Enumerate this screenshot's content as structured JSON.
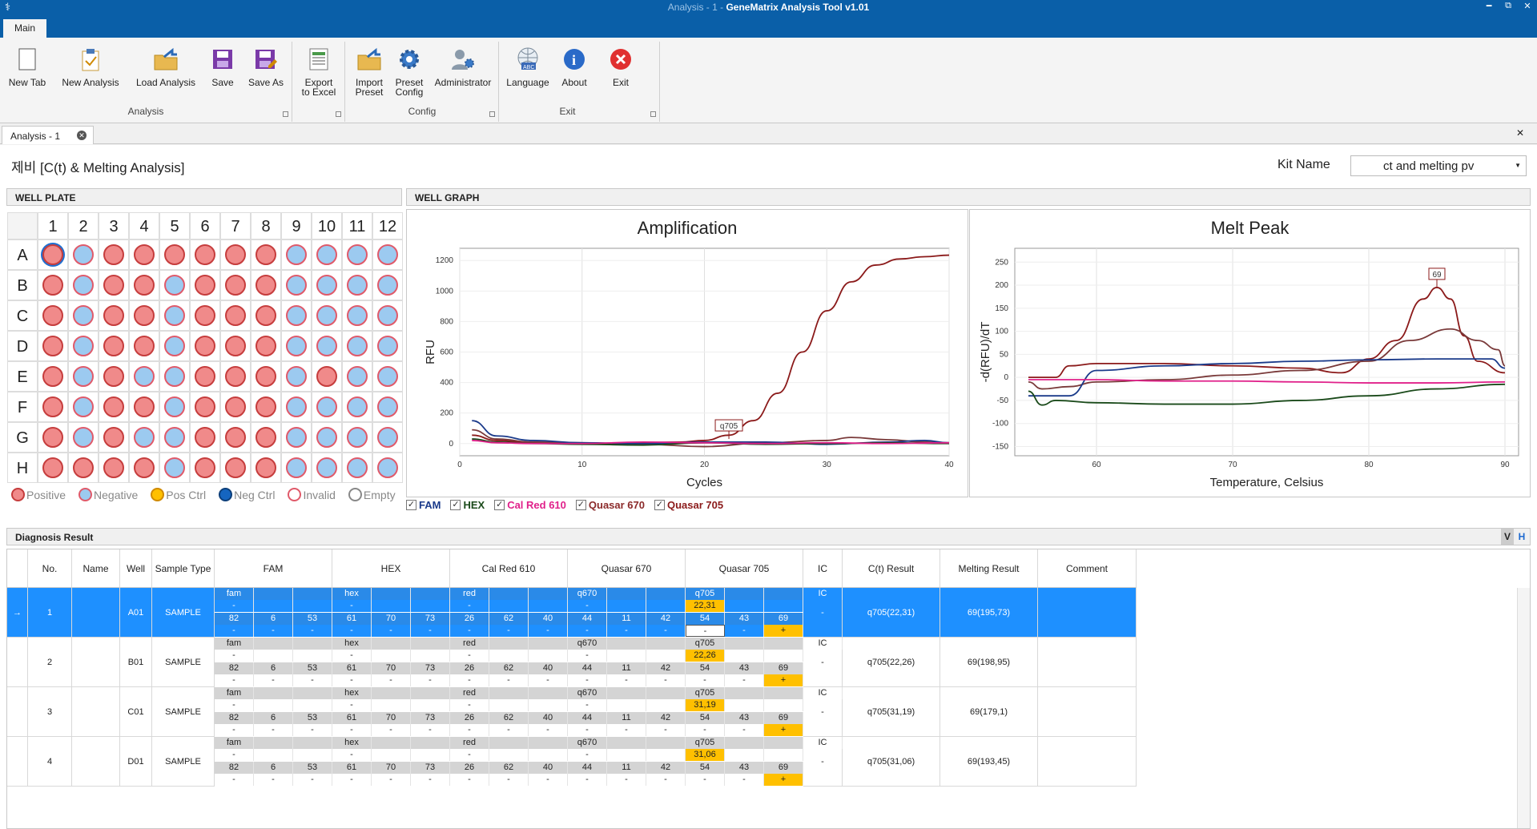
{
  "window": {
    "title_prefix": "Analysis - 1 - ",
    "title": "GeneMatrix Analysis Tool v1.01",
    "min": "━",
    "restore": "⧉",
    "close": "✕"
  },
  "ribbon": {
    "tab": "Main",
    "groups": [
      {
        "label": "Analysis"
      },
      {
        "label": "Config"
      },
      {
        "label": "Exit"
      }
    ],
    "buttons": {
      "new_tab": "New Tab",
      "new_analysis": "New Analysis",
      "load_analysis": "Load Analysis",
      "save": "Save",
      "save_as": "Save As",
      "export1": "Export",
      "export2": "to Excel",
      "import1": "Import",
      "import2": "Preset",
      "preset1": "Preset",
      "preset2": "Config",
      "admin": "Administrator",
      "language": "Language",
      "about": "About",
      "exit": "Exit"
    }
  },
  "doc_tab": {
    "label": "Analysis - 1",
    "close": "✕"
  },
  "close_all": "✕",
  "heading": "제비 [C(t) & Melting Analysis]",
  "kit": {
    "label": "Kit Name",
    "value": "ct and melting pv"
  },
  "well_plate": {
    "header": "WELL PLATE",
    "cols": [
      "1",
      "2",
      "3",
      "4",
      "5",
      "6",
      "7",
      "8",
      "9",
      "10",
      "11",
      "12"
    ],
    "rows": [
      "A",
      "B",
      "C",
      "D",
      "E",
      "F",
      "G",
      "H"
    ],
    "layout": [
      "PNPPPPPPNNNN",
      "PNPPNPPPNNNN",
      "PNPPNPPPNNNN",
      "PNPPNPPPNNNN",
      "PNPNNPPPNPNN",
      "PNPPNPPPNNNN",
      "PNPNNPPPNNNN",
      "PPPPNPPPNNNN"
    ],
    "legend": [
      {
        "label": "Positive",
        "fill": "#f08a8a",
        "stroke": "#c63d3d"
      },
      {
        "label": "Negative",
        "fill": "#9ccaf0",
        "stroke": "#e05a6a"
      },
      {
        "label": "Pos Ctrl",
        "fill": "#ffc000",
        "stroke": "#d08a00"
      },
      {
        "label": "Neg Ctrl",
        "fill": "#1565c0",
        "stroke": "#0d3f7a"
      },
      {
        "label": "Invalid",
        "fill": "#ffffff",
        "stroke": "#e05a6a"
      },
      {
        "label": "Empty",
        "fill": "#ffffff",
        "stroke": "#888888"
      }
    ]
  },
  "well_graph": {
    "header": "WELL GRAPH"
  },
  "chart_data": [
    {
      "type": "line",
      "title": "Amplification",
      "xlabel": "Cycles",
      "ylabel": "RFU",
      "xlim": [
        0,
        40
      ],
      "ylim": [
        -80,
        1280
      ],
      "xticks": [
        0,
        10,
        20,
        30,
        40
      ],
      "yticks": [
        0,
        200,
        400,
        600,
        800,
        1000,
        1200
      ],
      "annotation": {
        "label": "q705",
        "x": 22,
        "y": 30
      },
      "series": [
        {
          "name": "Quasar 705",
          "color": "#8b1a1a",
          "x": [
            1,
            3,
            6,
            10,
            15,
            18,
            20,
            22,
            24,
            26,
            28,
            30,
            32,
            34,
            36,
            38,
            40
          ],
          "y": [
            55,
            20,
            5,
            0,
            5,
            10,
            20,
            55,
            150,
            330,
            600,
            870,
            1060,
            1170,
            1210,
            1225,
            1235
          ]
        },
        {
          "name": "Quasar 670",
          "color": "#7a3a3a",
          "x": [
            1,
            3,
            6,
            10,
            15,
            20,
            25,
            30,
            32,
            35,
            38,
            40
          ],
          "y": [
            90,
            30,
            10,
            5,
            -5,
            -20,
            5,
            20,
            40,
            25,
            10,
            5
          ]
        },
        {
          "name": "FAM",
          "color": "#1a3a8a",
          "x": [
            1,
            3,
            6,
            10,
            15,
            20,
            25,
            30,
            35,
            38,
            40
          ],
          "y": [
            150,
            50,
            20,
            5,
            0,
            10,
            10,
            -5,
            10,
            20,
            5
          ]
        },
        {
          "name": "HEX",
          "color": "#1a4a1a",
          "x": [
            1,
            3,
            6,
            10,
            15,
            20,
            25,
            30,
            35,
            40
          ],
          "y": [
            30,
            10,
            0,
            -5,
            -10,
            5,
            -5,
            0,
            5,
            0
          ]
        },
        {
          "name": "Cal Red 610",
          "color": "#e0208a",
          "x": [
            1,
            3,
            6,
            10,
            15,
            20,
            25,
            30,
            35,
            40
          ],
          "y": [
            20,
            5,
            0,
            0,
            10,
            5,
            0,
            5,
            0,
            5
          ]
        }
      ]
    },
    {
      "type": "line",
      "title": "Melt Peak",
      "xlabel": "Temperature, Celsius",
      "ylabel": "-d(RFU)/dT",
      "xlim": [
        54,
        91
      ],
      "ylim": [
        -170,
        280
      ],
      "xticks": [
        60,
        70,
        80,
        90
      ],
      "yticks": [
        -150,
        -100,
        -50,
        0,
        50,
        100,
        150,
        200,
        250
      ],
      "annotation": {
        "label": "69",
        "x": 85,
        "y": 195
      },
      "series": [
        {
          "name": "Quasar 705",
          "color": "#8b1a1a",
          "x": [
            55,
            57,
            58,
            60,
            65,
            70,
            75,
            78,
            80,
            82,
            84,
            85,
            86,
            87,
            88,
            90
          ],
          "y": [
            0,
            0,
            25,
            30,
            30,
            25,
            20,
            10,
            40,
            80,
            170,
            195,
            170,
            90,
            35,
            10
          ]
        },
        {
          "name": "Quasar 670",
          "color": "#7a3a3a",
          "x": [
            55,
            56,
            58,
            60,
            65,
            70,
            75,
            80,
            83,
            86,
            88,
            89.5,
            90
          ],
          "y": [
            -10,
            -25,
            -20,
            -10,
            -5,
            5,
            15,
            35,
            80,
            105,
            80,
            60,
            25
          ]
        },
        {
          "name": "FAM",
          "color": "#1a3a8a",
          "x": [
            55,
            56,
            58,
            60,
            65,
            70,
            75,
            80,
            85,
            89,
            90
          ],
          "y": [
            -40,
            -40,
            -40,
            15,
            25,
            30,
            35,
            38,
            40,
            40,
            20
          ]
        },
        {
          "name": "HEX",
          "color": "#1a4a1a",
          "x": [
            55,
            56,
            57,
            60,
            65,
            70,
            75,
            80,
            85,
            90
          ],
          "y": [
            -30,
            -60,
            -50,
            -55,
            -58,
            -58,
            -50,
            -40,
            -25,
            -15
          ]
        },
        {
          "name": "Cal Red 610",
          "color": "#e0208a",
          "x": [
            55,
            60,
            65,
            70,
            75,
            80,
            85,
            90
          ],
          "y": [
            -5,
            -5,
            -8,
            -8,
            -10,
            -12,
            -12,
            -10
          ]
        }
      ]
    }
  ],
  "dye_checks": [
    {
      "label": "FAM",
      "color": "#1a3a8a",
      "mark": "✓"
    },
    {
      "label": "HEX",
      "color": "#1a4a1a",
      "mark": "✓"
    },
    {
      "label": "Cal Red 610",
      "color": "#e0208a",
      "mark": "✓"
    },
    {
      "label": "Quasar 670",
      "color": "#8b2a2a",
      "mark": "✓"
    },
    {
      "label": "Quasar 705",
      "color": "#8b1a1a",
      "mark": "✓"
    }
  ],
  "diagnosis": {
    "header": "Diagnosis Result",
    "vh": [
      "V",
      "H"
    ],
    "columns": [
      "No.",
      "Name",
      "Well",
      "Sample Type",
      "FAM",
      "HEX",
      "Cal Red 610",
      "Quasar 670",
      "Quasar 705",
      "IC",
      "C(t) Result",
      "Melting Result",
      "Comment"
    ],
    "rows": [
      {
        "no": "1",
        "name": "",
        "well": "A01",
        "type": "SAMPLE",
        "arrow": "→",
        "ct": "22,31",
        "ic": "-",
        "ct_result": "q705(22,31)",
        "melt_result": "69(195,73)",
        "comment": ""
      },
      {
        "no": "2",
        "name": "",
        "well": "B01",
        "type": "SAMPLE",
        "arrow": "",
        "ct": "22,26",
        "ic": "-",
        "ct_result": "q705(22,26)",
        "melt_result": "69(198,95)",
        "comment": ""
      },
      {
        "no": "3",
        "name": "",
        "well": "C01",
        "type": "SAMPLE",
        "arrow": "",
        "ct": "31,19",
        "ic": "-",
        "ct_result": "q705(31,19)",
        "melt_result": "69(179,1)",
        "comment": ""
      },
      {
        "no": "4",
        "name": "",
        "well": "D01",
        "type": "SAMPLE",
        "arrow": "",
        "ct": "31,06",
        "ic": "-",
        "ct_result": "q705(31,06)",
        "melt_result": "69(193,45)",
        "comment": ""
      }
    ],
    "dye_names": [
      "fam",
      "hex",
      "red",
      "q670",
      "q705"
    ],
    "ic_label": "IC",
    "dash": "-",
    "plus": "+",
    "temps": [
      [
        "82",
        "6",
        "53"
      ],
      [
        "61",
        "70",
        "73"
      ],
      [
        "26",
        "62",
        "40"
      ],
      [
        "44",
        "11",
        "42"
      ],
      [
        "54",
        "43",
        "69"
      ]
    ]
  }
}
